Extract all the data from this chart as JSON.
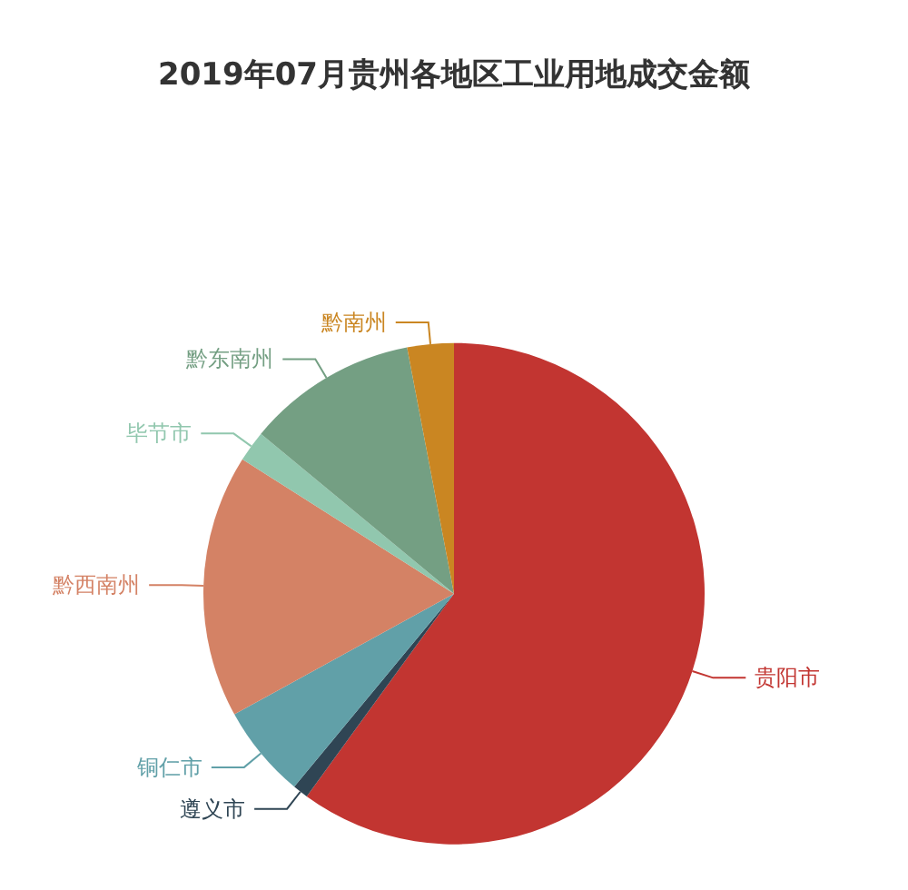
{
  "chart_data": {
    "type": "pie",
    "title": "2019年07月贵州各地区工业用地成交金额",
    "categories": [
      "贵阳市",
      "遵义市",
      "铜仁市",
      "黔西南州",
      "毕节市",
      "黔东南州",
      "黔南州"
    ],
    "values": [
      60,
      1,
      6,
      17,
      2,
      11,
      3
    ],
    "colors": [
      "#c23531",
      "#2f4554",
      "#61a0a8",
      "#d48265",
      "#91c7ae",
      "#749f83",
      "#ca8622"
    ]
  }
}
